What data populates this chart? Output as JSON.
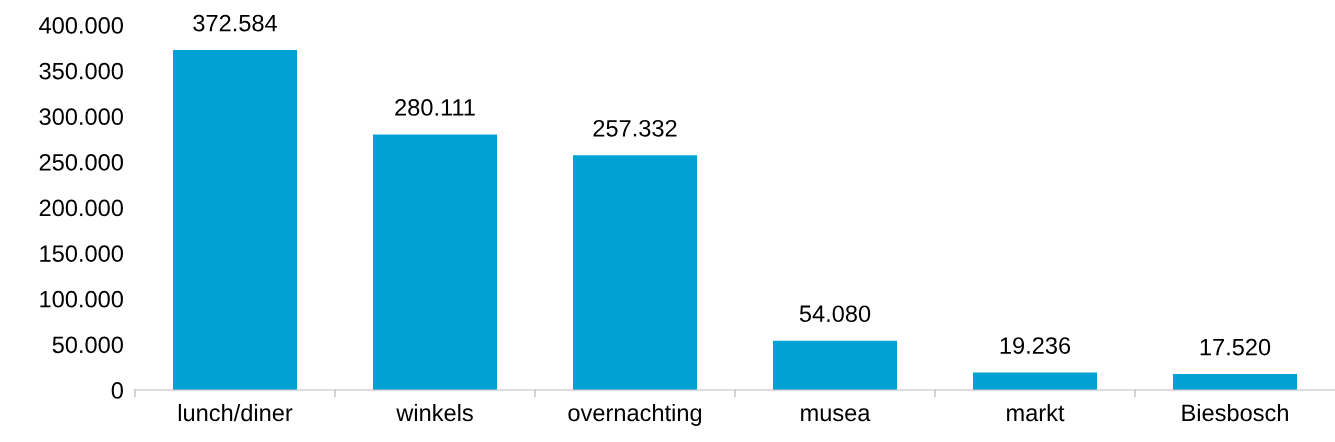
{
  "chart_data": {
    "type": "bar",
    "categories": [
      "lunch/diner",
      "winkels",
      "overnachting",
      "musea",
      "markt",
      "Biesbosch"
    ],
    "values": [
      372584,
      280111,
      257332,
      54080,
      19236,
      17520
    ],
    "value_labels": [
      "372.584",
      "280.111",
      "257.332",
      "54.080",
      "19.236",
      "17.520"
    ],
    "color": "#00a2d3",
    "ylim": [
      0,
      400000
    ],
    "yticks": [
      {
        "value": 0,
        "label": "0"
      },
      {
        "value": 50000,
        "label": "50.000"
      },
      {
        "value": 100000,
        "label": "100.000"
      },
      {
        "value": 150000,
        "label": "150.000"
      },
      {
        "value": 200000,
        "label": "200.000"
      },
      {
        "value": 250000,
        "label": "250.000"
      },
      {
        "value": 300000,
        "label": "300.000"
      },
      {
        "value": 350000,
        "label": "350.000"
      },
      {
        "value": 400000,
        "label": "400.000"
      }
    ],
    "grid": false,
    "legend": false
  }
}
